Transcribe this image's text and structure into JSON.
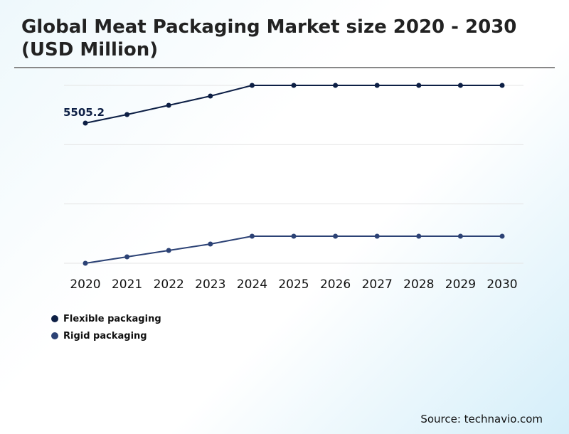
{
  "title": "Global Meat Packaging Market size 2020 - 2030 (USD Million)",
  "source": "Source: technavio.com",
  "chart_data": {
    "type": "line",
    "title": "Global Meat Packaging Market size 2020 - 2030 (USD Million)",
    "categories": [
      "2020",
      "2021",
      "2022",
      "2023",
      "2024",
      "2025",
      "2026",
      "2027",
      "2028",
      "2029",
      "2030"
    ],
    "ylim": [
      0,
      6986
    ],
    "grid": true,
    "legend": "bottom-left",
    "series": [
      {
        "name": "Flexible packaging",
        "color": "#0d1f45",
        "values": [
          5505.2,
          5840,
          6203,
          6566,
          6986,
          6986,
          6986,
          6986,
          6986,
          6986,
          6986
        ]
      },
      {
        "name": "Rigid packaging",
        "color": "#2c4275",
        "values": [
          0,
          251,
          503,
          754,
          1062,
          1062,
          1062,
          1062,
          1062,
          1062,
          1062
        ]
      }
    ],
    "annotations": [
      {
        "series": "Flexible packaging",
        "x": "2020",
        "label": "5505.2"
      }
    ]
  }
}
